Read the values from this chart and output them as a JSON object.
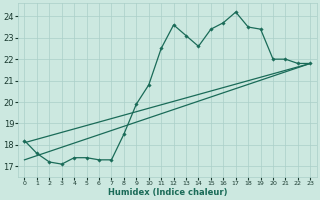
{
  "title": "",
  "xlabel": "Humidex (Indice chaleur)",
  "xlim": [
    -0.5,
    23.5
  ],
  "ylim": [
    16.5,
    24.6
  ],
  "yticks": [
    17,
    18,
    19,
    20,
    21,
    22,
    23,
    24
  ],
  "xticks": [
    0,
    1,
    2,
    3,
    4,
    5,
    6,
    7,
    8,
    9,
    10,
    11,
    12,
    13,
    14,
    15,
    16,
    17,
    18,
    19,
    20,
    21,
    22,
    23
  ],
  "bg_color": "#cce8e0",
  "grid_color": "#aacfc8",
  "line_color": "#1a6b58",
  "line1_x": [
    0,
    1,
    2,
    3,
    4,
    5,
    6,
    7,
    8,
    9,
    10,
    11,
    12,
    13,
    14,
    15,
    16,
    17,
    18,
    19,
    20,
    21,
    22,
    23
  ],
  "line1_y": [
    18.2,
    17.6,
    17.2,
    17.1,
    17.4,
    17.4,
    17.3,
    17.3,
    18.5,
    19.9,
    20.8,
    22.5,
    23.6,
    23.1,
    22.6,
    23.4,
    23.7,
    24.2,
    23.5,
    23.4,
    22.0,
    22.0,
    21.8,
    21.8
  ],
  "line2_x": [
    0,
    23
  ],
  "line2_y": [
    17.3,
    21.8
  ],
  "line3_x": [
    0,
    23
  ],
  "line3_y": [
    18.1,
    21.8
  ]
}
